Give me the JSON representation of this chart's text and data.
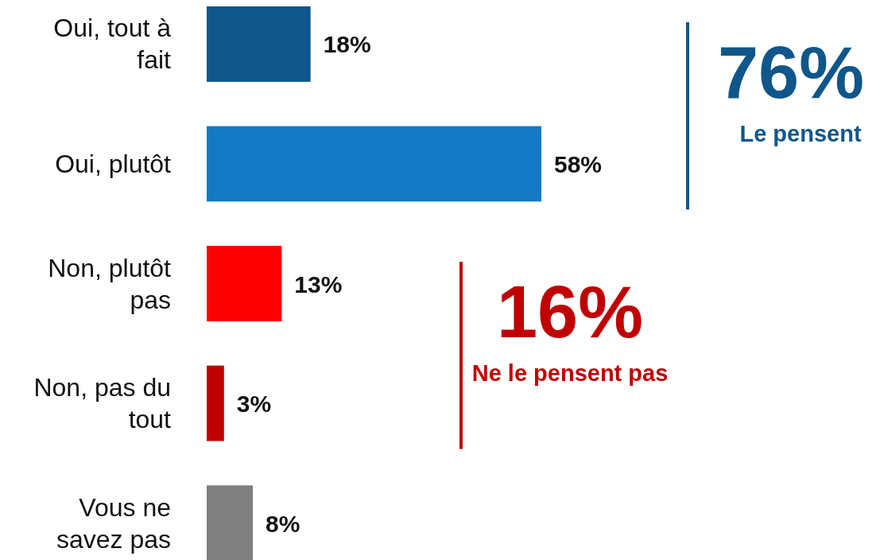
{
  "chart_data": {
    "type": "bar",
    "orientation": "horizontal",
    "categories": [
      "Oui, tout à fait",
      "Oui, plutôt",
      "Non, plutôt pas",
      "Non, pas du tout",
      "Vous ne savez pas"
    ],
    "values": [
      18,
      58,
      13,
      3,
      8
    ],
    "colors": [
      "#0f568a",
      "#1479c4",
      "#ff0000",
      "#c00000",
      "#808080"
    ],
    "value_labels": [
      "18%",
      "58%",
      "13%",
      "3%",
      "8%"
    ],
    "annotations": [
      "76%",
      "Le pensent",
      "16%",
      "Ne le pensent pas"
    ]
  }
}
